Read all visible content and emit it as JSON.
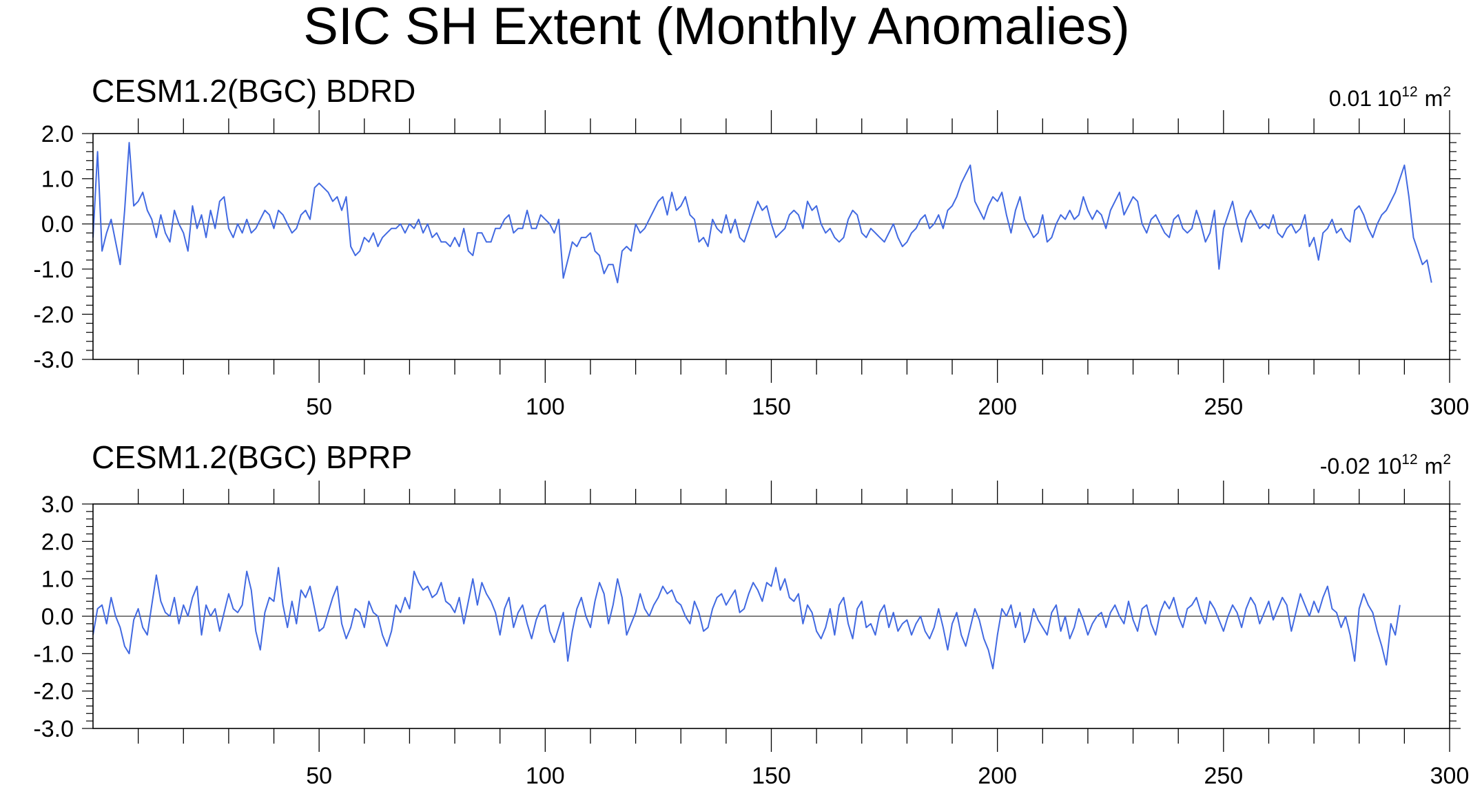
{
  "figure": {
    "title": "SIC SH Extent (Monthly Anomalies)"
  },
  "colors": {
    "series": "#4169e1",
    "axis": "#000000",
    "zero_line": "#000000"
  },
  "chart_data": [
    {
      "type": "line",
      "title": "CESM1.2(BGC) BDRD",
      "mean_label": "0.01",
      "units_base": "10",
      "units_exp": "12",
      "units_unit": "m",
      "units_unit_exp": "2",
      "xlabel": "",
      "ylabel": "",
      "xlim": [
        0,
        300
      ],
      "ylim": [
        -3.0,
        2.0
      ],
      "x_ticks": [
        50,
        100,
        150,
        200,
        250,
        300
      ],
      "x_tick_labels": [
        "50",
        "100",
        "150",
        "200",
        "250",
        "300"
      ],
      "y_ticks": [
        2.0,
        1.0,
        0.0,
        -1.0,
        -2.0,
        -3.0
      ],
      "y_tick_labels": [
        "2.0",
        "1.0",
        "0.0",
        "-1.0",
        "-2.0",
        "-3.0"
      ],
      "series": [
        {
          "x_start": 0,
          "x_step": 1,
          "values": [
            -0.3,
            1.6,
            -0.6,
            -0.2,
            0.1,
            -0.4,
            -0.9,
            0.3,
            1.8,
            0.4,
            0.5,
            0.7,
            0.3,
            0.1,
            -0.3,
            0.2,
            -0.2,
            -0.4,
            0.3,
            0.0,
            -0.2,
            -0.6,
            0.4,
            -0.1,
            0.2,
            -0.3,
            0.3,
            -0.1,
            0.5,
            0.6,
            -0.1,
            -0.3,
            0.0,
            -0.2,
            0.1,
            -0.2,
            -0.1,
            0.1,
            0.3,
            0.2,
            -0.1,
            0.3,
            0.2,
            0.0,
            -0.2,
            -0.1,
            0.2,
            0.3,
            0.1,
            0.8,
            0.9,
            0.8,
            0.7,
            0.5,
            0.6,
            0.3,
            0.6,
            -0.5,
            -0.7,
            -0.6,
            -0.3,
            -0.4,
            -0.2,
            -0.5,
            -0.3,
            -0.2,
            -0.1,
            -0.1,
            0.0,
            -0.2,
            0.0,
            -0.1,
            0.1,
            -0.2,
            0.0,
            -0.3,
            -0.2,
            -0.4,
            -0.4,
            -0.5,
            -0.3,
            -0.5,
            -0.1,
            -0.6,
            -0.7,
            -0.2,
            -0.2,
            -0.4,
            -0.4,
            -0.1,
            -0.1,
            0.1,
            0.2,
            -0.2,
            -0.1,
            -0.1,
            0.3,
            -0.1,
            -0.1,
            0.2,
            0.1,
            0.0,
            -0.2,
            0.1,
            -1.2,
            -0.8,
            -0.4,
            -0.5,
            -0.3,
            -0.3,
            -0.2,
            -0.6,
            -0.7,
            -1.1,
            -0.9,
            -0.9,
            -1.3,
            -0.6,
            -0.5,
            -0.6,
            0.0,
            -0.2,
            -0.1,
            0.1,
            0.3,
            0.5,
            0.6,
            0.2,
            0.7,
            0.3,
            0.4,
            0.6,
            0.2,
            0.1,
            -0.4,
            -0.3,
            -0.5,
            0.1,
            -0.1,
            -0.2,
            0.2,
            -0.2,
            0.1,
            -0.3,
            -0.4,
            -0.1,
            0.2,
            0.5,
            0.3,
            0.4,
            0.0,
            -0.3,
            -0.2,
            -0.1,
            0.2,
            0.3,
            0.2,
            -0.1,
            0.5,
            0.3,
            0.4,
            0.0,
            -0.2,
            -0.1,
            -0.3,
            -0.4,
            -0.3,
            0.1,
            0.3,
            0.2,
            -0.2,
            -0.3,
            -0.1,
            -0.2,
            -0.3,
            -0.4,
            -0.2,
            0.0,
            -0.3,
            -0.5,
            -0.4,
            -0.2,
            -0.1,
            0.1,
            0.2,
            -0.1,
            0.0,
            0.2,
            -0.1,
            0.3,
            0.4,
            0.6,
            0.9,
            1.1,
            1.3,
            0.5,
            0.3,
            0.1,
            0.4,
            0.6,
            0.5,
            0.7,
            0.2,
            -0.2,
            0.3,
            0.6,
            0.1,
            -0.1,
            -0.3,
            -0.2,
            0.2,
            -0.4,
            -0.3,
            0.0,
            0.2,
            0.1,
            0.3,
            0.1,
            0.2,
            0.6,
            0.3,
            0.1,
            0.3,
            0.2,
            -0.1,
            0.3,
            0.5,
            0.7,
            0.2,
            0.4,
            0.6,
            0.5,
            0.0,
            -0.2,
            0.1,
            0.2,
            0.0,
            -0.2,
            -0.3,
            0.1,
            0.2,
            -0.1,
            -0.2,
            -0.1,
            0.3,
            0.0,
            -0.4,
            -0.2,
            0.3,
            -1.0,
            -0.1,
            0.2,
            0.5,
            0.0,
            -0.4,
            0.1,
            0.3,
            0.1,
            -0.1,
            0.0,
            -0.1,
            0.2,
            -0.2,
            -0.3,
            -0.1,
            0.0,
            -0.2,
            -0.1,
            0.2,
            -0.5,
            -0.3,
            -0.8,
            -0.2,
            -0.1,
            0.1,
            -0.2,
            -0.1,
            -0.3,
            -0.4,
            0.3,
            0.4,
            0.2,
            -0.1,
            -0.3,
            0.0,
            0.2,
            0.3,
            0.5,
            0.7,
            1.0,
            1.3,
            0.6,
            -0.3,
            -0.6,
            -0.9,
            -0.8,
            -1.3
          ]
        }
      ]
    },
    {
      "type": "line",
      "title": "CESM1.2(BGC) BPRP",
      "mean_label": "-0.02",
      "units_base": "10",
      "units_exp": "12",
      "units_unit": "m",
      "units_unit_exp": "2",
      "xlabel": "",
      "ylabel": "",
      "xlim": [
        0,
        300
      ],
      "ylim": [
        -3.0,
        3.0
      ],
      "x_ticks": [
        50,
        100,
        150,
        200,
        250,
        300
      ],
      "x_tick_labels": [
        "50",
        "100",
        "150",
        "200",
        "250",
        "300"
      ],
      "y_ticks": [
        3.0,
        2.0,
        1.0,
        0.0,
        -1.0,
        -2.0,
        -3.0
      ],
      "y_tick_labels": [
        "3.0",
        "2.0",
        "1.0",
        "0.0",
        "-1.0",
        "-2.0",
        "-3.0"
      ],
      "series": [
        {
          "x_start": 0,
          "x_step": 1,
          "values": [
            -0.5,
            0.2,
            0.3,
            -0.2,
            0.5,
            0.0,
            -0.3,
            -0.8,
            -1.0,
            -0.1,
            0.2,
            -0.3,
            -0.5,
            0.3,
            1.1,
            0.4,
            0.1,
            0.0,
            0.5,
            -0.2,
            0.3,
            0.0,
            0.5,
            0.8,
            -0.5,
            0.3,
            0.0,
            0.2,
            -0.4,
            0.1,
            0.6,
            0.2,
            0.1,
            0.3,
            1.2,
            0.7,
            -0.4,
            -0.9,
            0.1,
            0.5,
            0.4,
            1.3,
            0.3,
            -0.3,
            0.4,
            -0.2,
            0.7,
            0.5,
            0.8,
            0.2,
            -0.4,
            -0.3,
            0.1,
            0.5,
            0.8,
            -0.2,
            -0.6,
            -0.3,
            0.2,
            0.1,
            -0.3,
            0.4,
            0.1,
            0.0,
            -0.5,
            -0.8,
            -0.4,
            0.3,
            0.1,
            0.5,
            0.2,
            1.2,
            0.9,
            0.7,
            0.8,
            0.5,
            0.6,
            0.9,
            0.4,
            0.3,
            0.1,
            0.5,
            -0.2,
            0.4,
            1.0,
            0.3,
            0.9,
            0.6,
            0.4,
            0.1,
            -0.5,
            0.2,
            0.5,
            -0.3,
            0.1,
            0.3,
            -0.2,
            -0.6,
            -0.1,
            0.2,
            0.3,
            -0.4,
            -0.7,
            -0.3,
            0.1,
            -1.2,
            -0.4,
            0.2,
            0.5,
            0.0,
            -0.3,
            0.4,
            0.9,
            0.6,
            -0.2,
            0.3,
            1.0,
            0.5,
            -0.5,
            -0.2,
            0.1,
            0.6,
            0.2,
            0.0,
            0.3,
            0.5,
            0.8,
            0.6,
            0.7,
            0.4,
            0.3,
            0.0,
            -0.2,
            0.4,
            0.1,
            -0.4,
            -0.3,
            0.2,
            0.5,
            0.6,
            0.3,
            0.5,
            0.7,
            0.1,
            0.2,
            0.6,
            0.9,
            0.7,
            0.4,
            0.9,
            0.8,
            1.3,
            0.7,
            1.0,
            0.5,
            0.4,
            0.6,
            -0.2,
            0.3,
            0.1,
            -0.4,
            -0.6,
            -0.3,
            0.2,
            -0.5,
            0.3,
            0.5,
            -0.2,
            -0.6,
            0.2,
            0.4,
            -0.3,
            -0.2,
            -0.5,
            0.1,
            0.3,
            -0.3,
            0.1,
            -0.4,
            -0.2,
            -0.1,
            -0.5,
            -0.2,
            0.0,
            -0.4,
            -0.6,
            -0.3,
            0.2,
            -0.3,
            -0.9,
            -0.2,
            0.1,
            -0.5,
            -0.8,
            -0.3,
            0.2,
            -0.1,
            -0.6,
            -0.9,
            -1.4,
            -0.5,
            0.2,
            0.0,
            0.3,
            -0.3,
            0.1,
            -0.7,
            -0.4,
            0.2,
            -0.1,
            -0.3,
            -0.5,
            0.1,
            0.3,
            -0.4,
            0.0,
            -0.6,
            -0.3,
            0.2,
            -0.1,
            -0.5,
            -0.2,
            0.0,
            0.1,
            -0.3,
            0.1,
            0.3,
            0.0,
            -0.2,
            0.4,
            -0.1,
            -0.4,
            0.2,
            0.3,
            -0.2,
            -0.5,
            0.1,
            0.4,
            0.2,
            0.5,
            0.0,
            -0.3,
            0.2,
            0.3,
            0.5,
            0.1,
            -0.2,
            0.4,
            0.2,
            -0.1,
            -0.4,
            0.0,
            0.3,
            0.1,
            -0.3,
            0.2,
            0.5,
            0.3,
            -0.2,
            0.1,
            0.4,
            -0.1,
            0.2,
            0.5,
            0.3,
            -0.4,
            0.1,
            0.6,
            0.3,
            0.0,
            0.4,
            0.1,
            0.5,
            0.8,
            0.2,
            0.1,
            -0.3,
            0.0,
            -0.5,
            -1.2,
            0.2,
            0.6,
            0.3,
            0.1,
            -0.4,
            -0.8,
            -1.3,
            -0.2,
            -0.5,
            0.3
          ]
        }
      ]
    }
  ]
}
